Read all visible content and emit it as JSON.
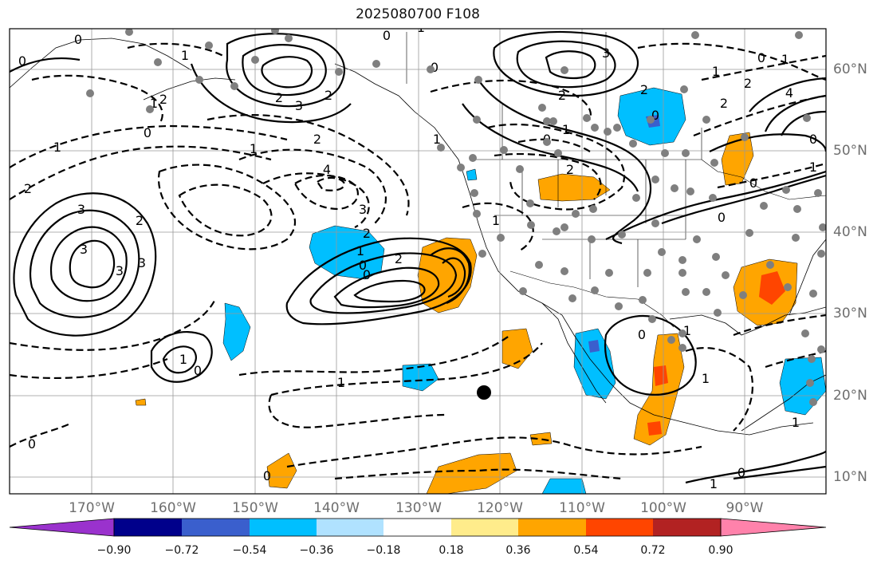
{
  "title": "2025080700 F108",
  "longitude_labels": [
    {
      "text": "170°W",
      "lon": -170
    },
    {
      "text": "160°W",
      "lon": -160
    },
    {
      "text": "150°W",
      "lon": -150
    },
    {
      "text": "140°W",
      "lon": -140
    },
    {
      "text": "130°W",
      "lon": -130
    },
    {
      "text": "120°W",
      "lon": -120
    },
    {
      "text": "110°W",
      "lon": -110
    },
    {
      "text": "100°W",
      "lon": -100
    },
    {
      "text": "90°W",
      "lon": -90
    }
  ],
  "latitude_labels": [
    {
      "text": "60°N",
      "lat": 60
    },
    {
      "text": "50°N",
      "lat": 50
    },
    {
      "text": "40°N",
      "lat": 40
    },
    {
      "text": "30°N",
      "lat": 30
    },
    {
      "text": "20°N",
      "lat": 20
    },
    {
      "text": "10°N",
      "lat": 10
    }
  ],
  "colorbar": {
    "colors": [
      "#9a32cd",
      "#00008b",
      "#3a5fcd",
      "#00bfff",
      "#b0e2ff",
      "#ffffff",
      "#ffec8b",
      "#ffa500",
      "#ff4500",
      "#b22222",
      "#ff82ab"
    ],
    "tick_labels": [
      "−0.90",
      "−0.72",
      "−0.54",
      "−0.36",
      "−0.18",
      "0.18",
      "0.36",
      "0.54",
      "0.72",
      "0.90"
    ]
  },
  "contour_labels": [
    "0",
    "0",
    "1",
    "1",
    "2",
    "2",
    "3",
    "3",
    "3",
    "3",
    "0",
    "0",
    "1",
    "1",
    "2",
    "2",
    "3",
    "4",
    "3",
    "2",
    "1",
    "0",
    "0",
    "1",
    "2",
    "0",
    "1",
    "2",
    "3",
    "2",
    "1",
    "0",
    "1",
    "2",
    "0",
    "1",
    "0",
    "1",
    "2",
    "2",
    "4",
    "0",
    "1",
    "0",
    "0",
    "1",
    "2",
    "0",
    "1",
    "1",
    "1",
    "0",
    "1",
    "0",
    "0",
    "1",
    "2",
    "0"
  ]
}
